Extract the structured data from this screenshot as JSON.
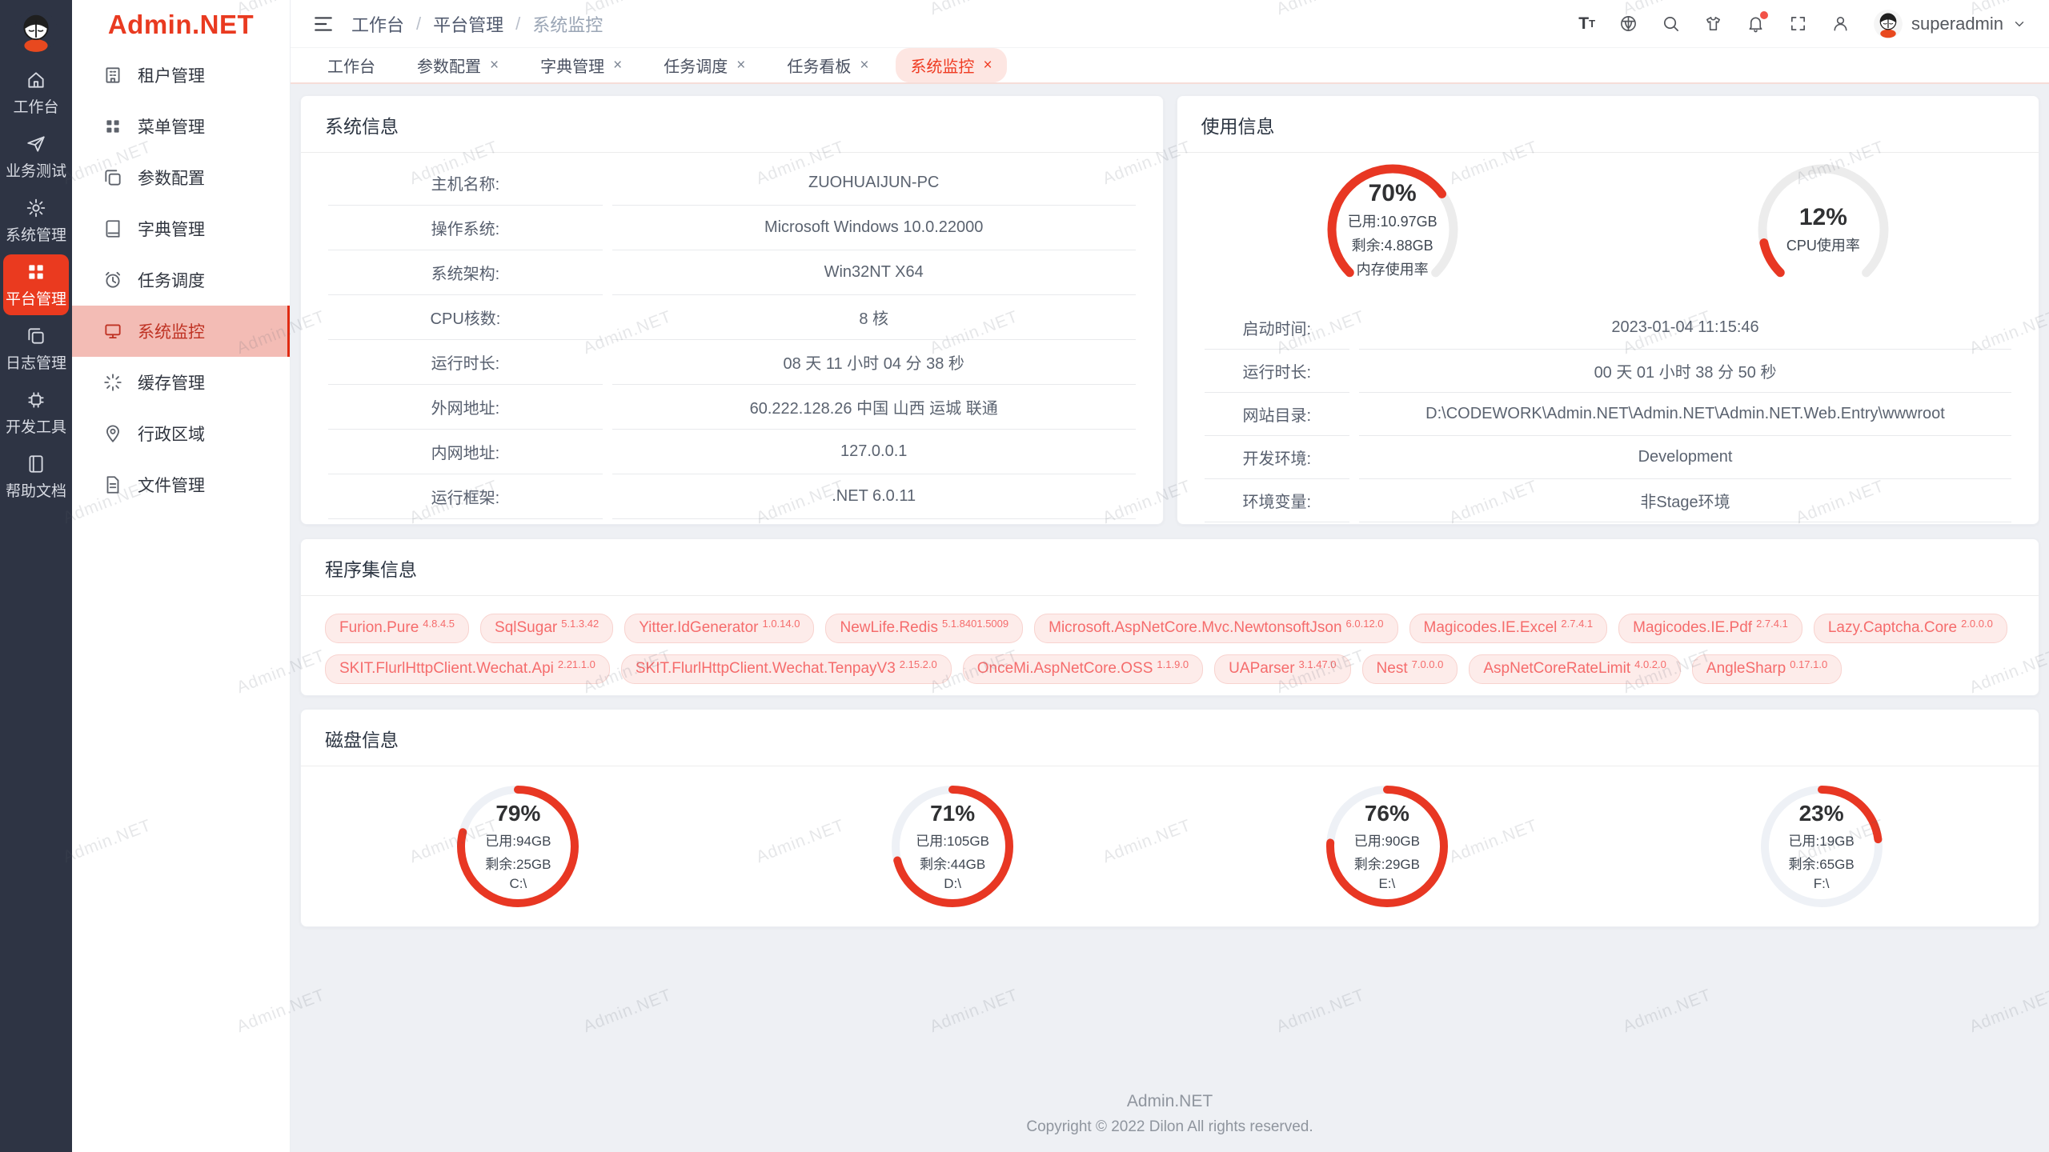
{
  "watermark": "Admin.NET",
  "brand": {
    "logo_text": "Admin.NET"
  },
  "colors": {
    "accent": "#ea3a1f",
    "gauge_red": "#e83723",
    "tag_text": "#f56c6c",
    "active_menu_bg": "#f3bcb5",
    "rail_bg": "#2e3444"
  },
  "rail": {
    "items": [
      {
        "label": "工作台"
      },
      {
        "label": "业务测试"
      },
      {
        "label": "系统管理"
      },
      {
        "label": "平台管理"
      },
      {
        "label": "日志管理"
      },
      {
        "label": "开发工具"
      },
      {
        "label": "帮助文档"
      }
    ]
  },
  "sidebar": {
    "items": [
      {
        "label": "租户管理"
      },
      {
        "label": "菜单管理"
      },
      {
        "label": "参数配置"
      },
      {
        "label": "字典管理"
      },
      {
        "label": "任务调度"
      },
      {
        "label": "系统监控"
      },
      {
        "label": "缓存管理"
      },
      {
        "label": "行政区域"
      },
      {
        "label": "文件管理"
      }
    ]
  },
  "header": {
    "breadcrumb": [
      "工作台",
      "平台管理",
      "系统监控"
    ],
    "user": "superadmin"
  },
  "tabs": [
    {
      "label": "工作台"
    },
    {
      "label": "参数配置",
      "close": "×"
    },
    {
      "label": "字典管理",
      "close": "×"
    },
    {
      "label": "任务调度",
      "close": "×"
    },
    {
      "label": "任务看板",
      "close": "×"
    },
    {
      "label": "系统监控",
      "close": "×"
    }
  ],
  "system_info": {
    "title": "系统信息",
    "rows": [
      {
        "label": "主机名称:",
        "value": "ZUOHUAIJUN-PC"
      },
      {
        "label": "操作系统:",
        "value": "Microsoft Windows 10.0.22000"
      },
      {
        "label": "系统架构:",
        "value": "Win32NT X64"
      },
      {
        "label": "CPU核数:",
        "value": "8 核"
      },
      {
        "label": "运行时长:",
        "value": "08 天 11 小时 04 分 38 秒"
      },
      {
        "label": "外网地址:",
        "value": "60.222.128.26 中国 山西 运城 联通"
      },
      {
        "label": "内网地址:",
        "value": "127.0.0.1"
      },
      {
        "label": "运行框架:",
        "value": ".NET 6.0.11"
      }
    ]
  },
  "usage_info": {
    "title": "使用信息",
    "gauges": [
      {
        "percent": 70,
        "label": "70%",
        "line1": "已用:10.97GB",
        "line2": "剩余:4.88GB",
        "line3": "内存使用率"
      },
      {
        "percent": 12,
        "label": "12%",
        "line1": "CPU使用率"
      }
    ],
    "rows": [
      {
        "label": "启动时间:",
        "value": "2023-01-04 11:15:46"
      },
      {
        "label": "运行时长:",
        "value": "00 天 01 小时 38 分 50 秒"
      },
      {
        "label": "网站目录:",
        "value": "D:\\CODEWORK\\Admin.NET\\Admin.NET\\Admin.NET.Web.Entry\\wwwroot"
      },
      {
        "label": "开发环境:",
        "value": "Development"
      },
      {
        "label": "环境变量:",
        "value": "非Stage环境"
      }
    ]
  },
  "assemblies": {
    "title": "程序集信息",
    "tags": [
      {
        "name": "Furion.Pure",
        "version": "4.8.4.5"
      },
      {
        "name": "SqlSugar",
        "version": "5.1.3.42"
      },
      {
        "name": "Yitter.IdGenerator",
        "version": "1.0.14.0"
      },
      {
        "name": "NewLife.Redis",
        "version": "5.1.8401.5009"
      },
      {
        "name": "Microsoft.AspNetCore.Mvc.NewtonsoftJson",
        "version": "6.0.12.0"
      },
      {
        "name": "Magicodes.IE.Excel",
        "version": "2.7.4.1"
      },
      {
        "name": "Magicodes.IE.Pdf",
        "version": "2.7.4.1"
      },
      {
        "name": "Lazy.Captcha.Core",
        "version": "2.0.0.0"
      },
      {
        "name": "SKIT.FlurlHttpClient.Wechat.Api",
        "version": "2.21.1.0"
      },
      {
        "name": "SKIT.FlurlHttpClient.Wechat.TenpayV3",
        "version": "2.15.2.0"
      },
      {
        "name": "OnceMi.AspNetCore.OSS",
        "version": "1.1.9.0"
      },
      {
        "name": "UAParser",
        "version": "3.1.47.0"
      },
      {
        "name": "Nest",
        "version": "7.0.0.0"
      },
      {
        "name": "AspNetCoreRateLimit",
        "version": "4.0.2.0"
      },
      {
        "name": "AngleSharp",
        "version": "0.17.1.0"
      }
    ]
  },
  "disks": {
    "title": "磁盘信息",
    "gauges": [
      {
        "percent": 79,
        "label": "79%",
        "line1": "已用:94GB",
        "line2": "剩余:25GB",
        "line3": "C:\\"
      },
      {
        "percent": 71,
        "label": "71%",
        "line1": "已用:105GB",
        "line2": "剩余:44GB",
        "line3": "D:\\"
      },
      {
        "percent": 76,
        "label": "76%",
        "line1": "已用:90GB",
        "line2": "剩余:29GB",
        "line3": "E:\\"
      },
      {
        "percent": 23,
        "label": "23%",
        "line1": "已用:19GB",
        "line2": "剩余:65GB",
        "line3": "F:\\"
      }
    ]
  },
  "footer": {
    "line1": "Admin.NET",
    "line2": "Copyright © 2022 Dilon All rights reserved."
  }
}
